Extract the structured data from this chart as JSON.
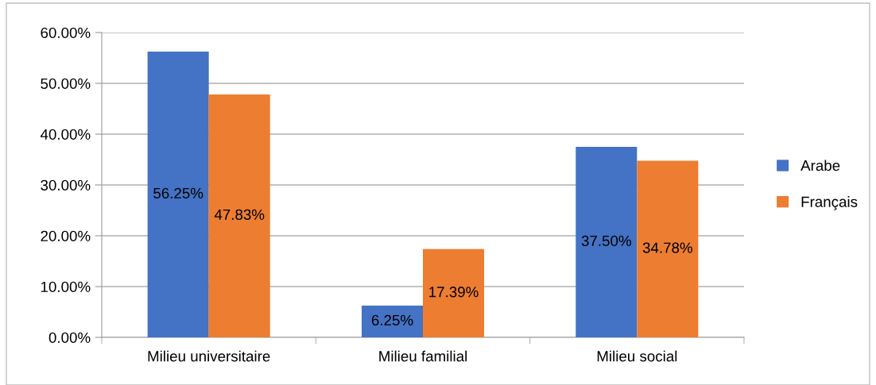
{
  "chart_data": {
    "type": "bar",
    "categories": [
      "Milieu universitaire",
      "Milieu familial",
      "Milieu social"
    ],
    "series": [
      {
        "name": "Arabe",
        "color": "#4472c4",
        "values": [
          56.25,
          6.25,
          37.5
        ],
        "value_labels": [
          "56.25%",
          "6.25%",
          "37.50%"
        ]
      },
      {
        "name": "Français",
        "color": "#ed7d31",
        "values": [
          47.83,
          17.39,
          34.78
        ],
        "value_labels": [
          "47.83%",
          "17.39%",
          "34.78%"
        ]
      }
    ],
    "ylim": [
      0,
      60
    ],
    "yticks": [
      {
        "value": 0,
        "label": "0.00%"
      },
      {
        "value": 10,
        "label": "10.00%"
      },
      {
        "value": 20,
        "label": "20.00%"
      },
      {
        "value": 30,
        "label": "30.00%"
      },
      {
        "value": 40,
        "label": "40.00%"
      },
      {
        "value": 50,
        "label": "50.00%"
      },
      {
        "value": 60,
        "label": "60.00%"
      }
    ],
    "grid": "y",
    "legend": "right"
  }
}
